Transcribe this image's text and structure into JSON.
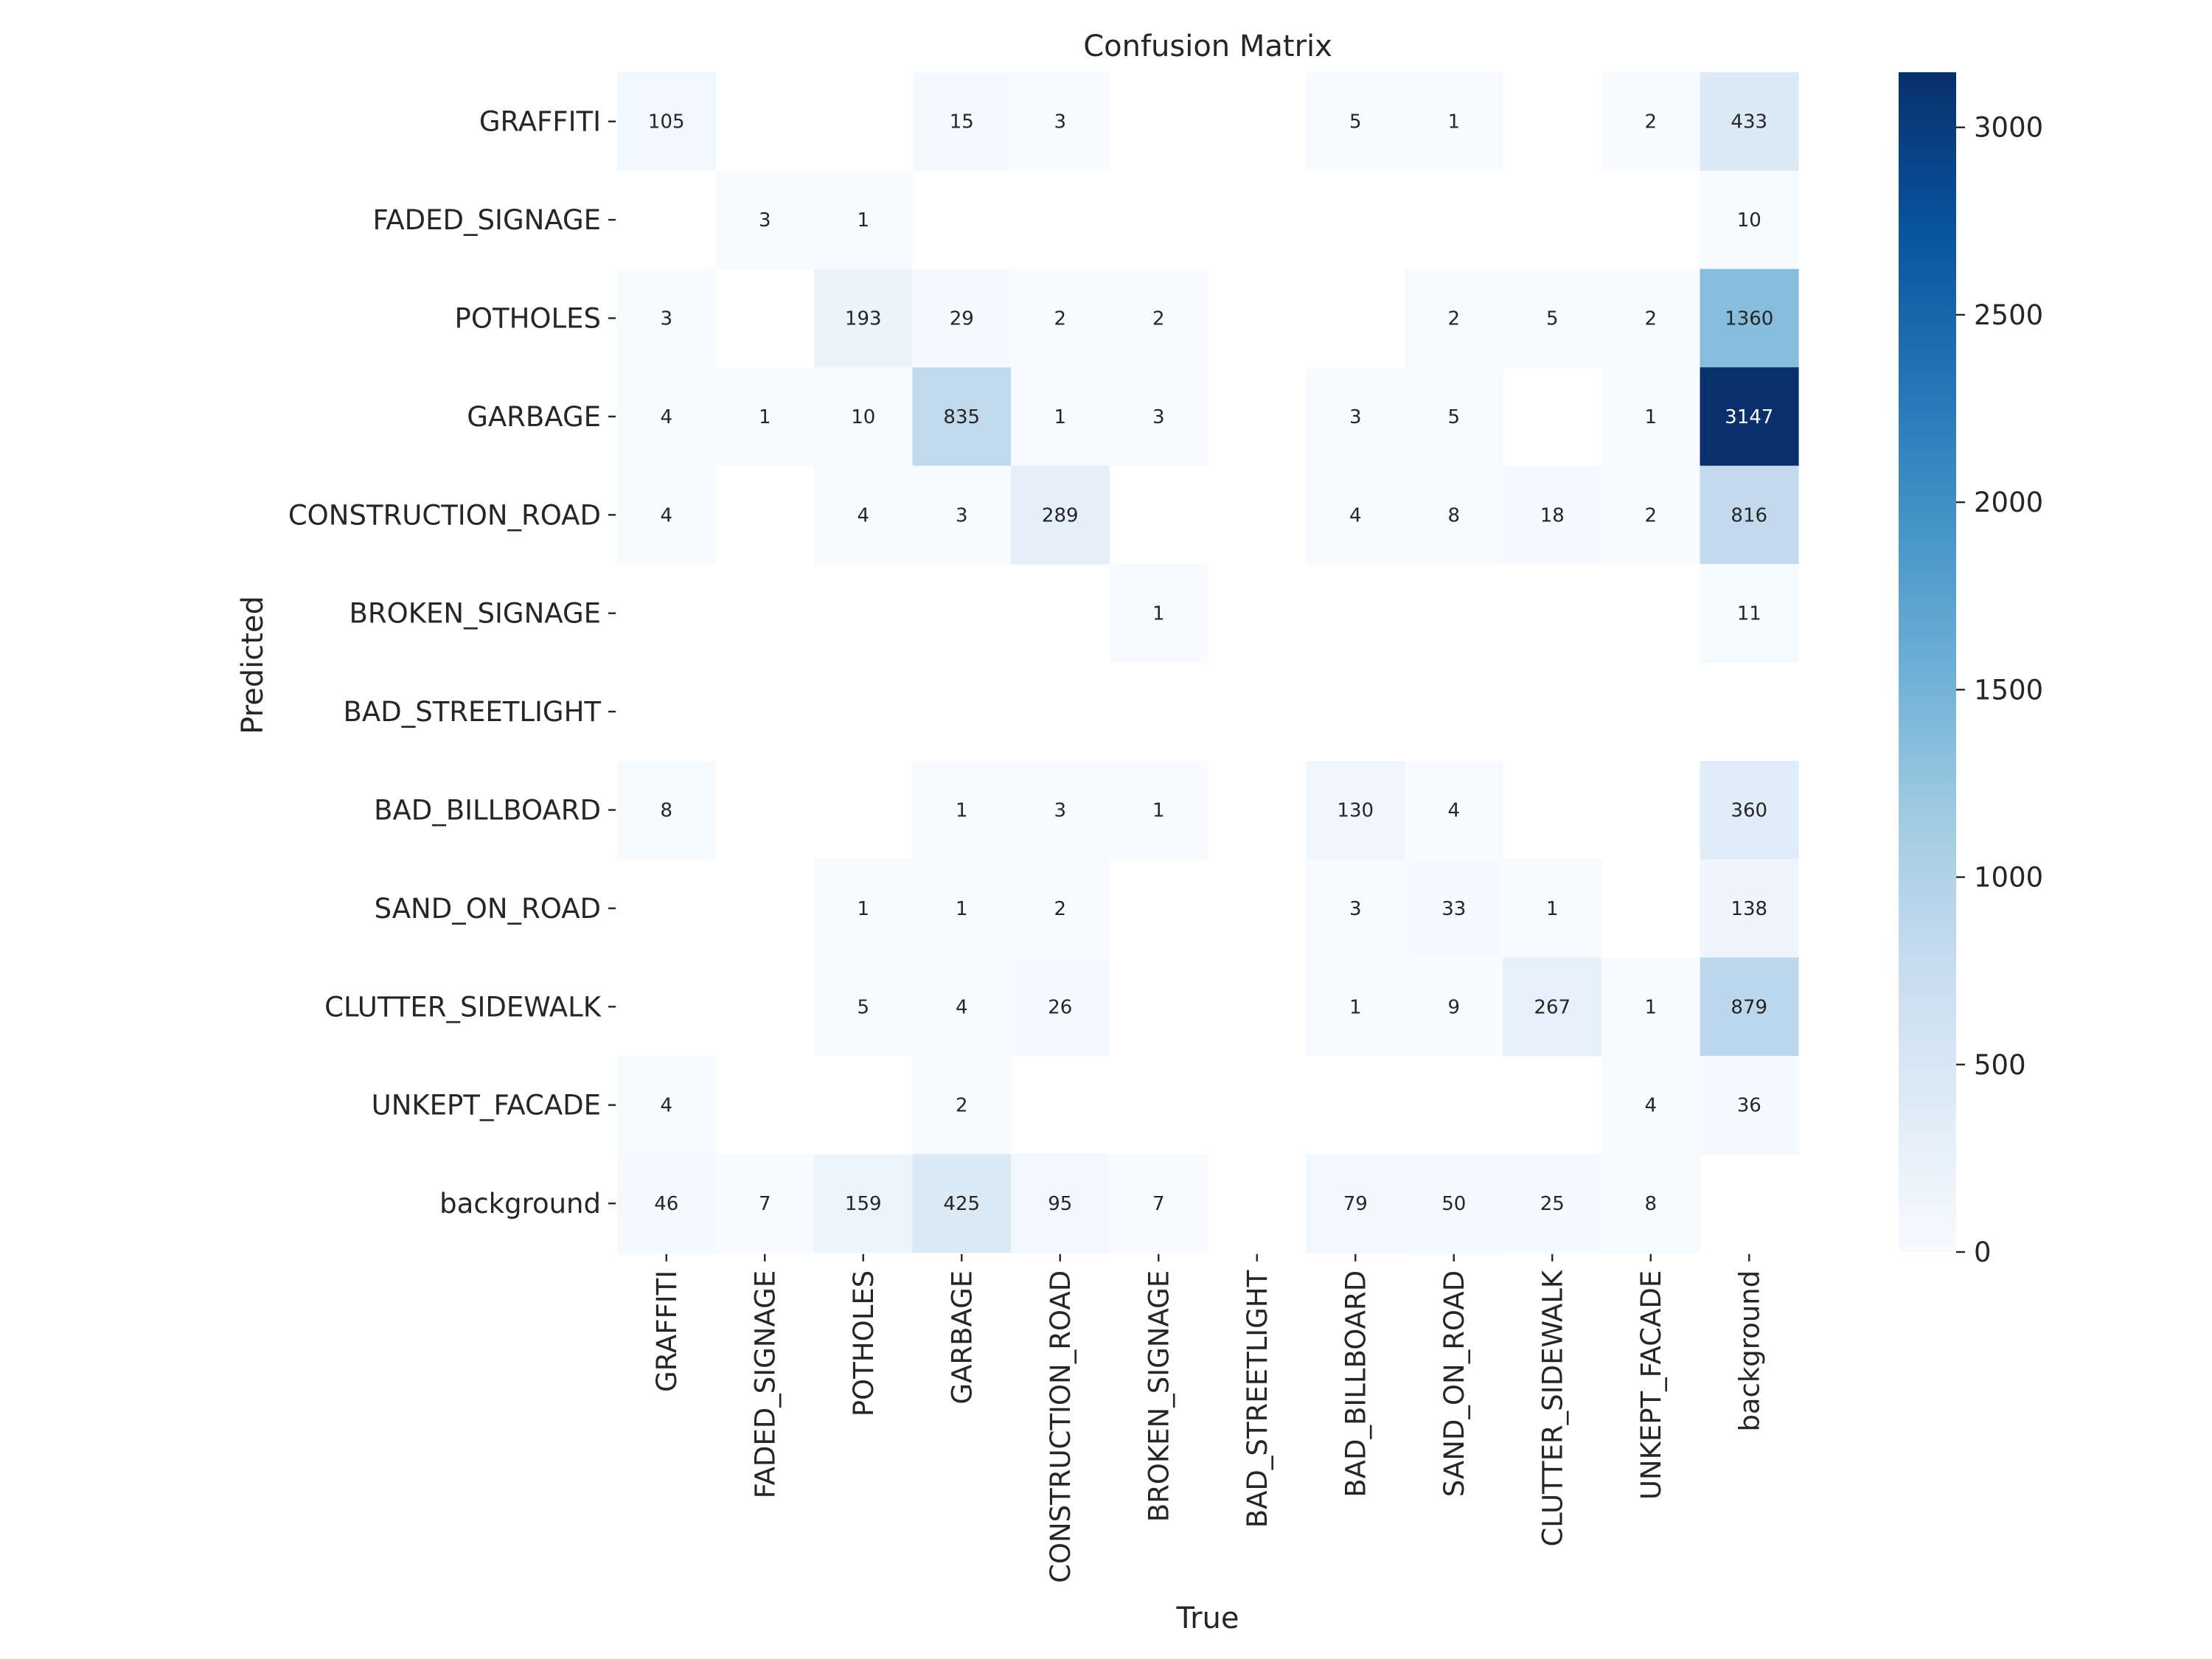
{
  "chart_data": {
    "type": "heatmap",
    "title": "Confusion Matrix",
    "xlabel": "True",
    "ylabel": "Predicted",
    "x_labels": [
      "GRAFFITI",
      "FADED_SIGNAGE",
      "POTHOLES",
      "GARBAGE",
      "CONSTRUCTION_ROAD",
      "BROKEN_SIGNAGE",
      "BAD_STREETLIGHT",
      "BAD_BILLBOARD",
      "SAND_ON_ROAD",
      "CLUTTER_SIDEWALK",
      "UNKEPT_FACADE",
      "background"
    ],
    "y_labels": [
      "GRAFFITI",
      "FADED_SIGNAGE",
      "POTHOLES",
      "GARBAGE",
      "CONSTRUCTION_ROAD",
      "BROKEN_SIGNAGE",
      "BAD_STREETLIGHT",
      "BAD_BILLBOARD",
      "SAND_ON_ROAD",
      "CLUTTER_SIDEWALK",
      "UNKEPT_FACADE",
      "background"
    ],
    "matrix": [
      [
        105,
        null,
        null,
        15,
        3,
        null,
        null,
        5,
        1,
        null,
        2,
        433
      ],
      [
        null,
        3,
        1,
        null,
        null,
        null,
        null,
        null,
        null,
        null,
        null,
        10
      ],
      [
        3,
        null,
        193,
        29,
        2,
        2,
        null,
        null,
        2,
        5,
        2,
        1360
      ],
      [
        4,
        1,
        10,
        835,
        1,
        3,
        null,
        3,
        5,
        null,
        1,
        3147
      ],
      [
        4,
        null,
        4,
        3,
        289,
        null,
        null,
        4,
        8,
        18,
        2,
        816
      ],
      [
        null,
        null,
        null,
        null,
        null,
        1,
        null,
        null,
        null,
        null,
        null,
        11
      ],
      [
        null,
        null,
        null,
        null,
        null,
        null,
        null,
        null,
        null,
        null,
        null,
        null
      ],
      [
        8,
        null,
        null,
        1,
        3,
        1,
        null,
        130,
        4,
        null,
        null,
        360
      ],
      [
        null,
        null,
        1,
        1,
        2,
        null,
        null,
        3,
        33,
        1,
        null,
        138
      ],
      [
        null,
        null,
        5,
        4,
        26,
        null,
        null,
        1,
        9,
        267,
        1,
        879
      ],
      [
        4,
        null,
        null,
        2,
        null,
        null,
        null,
        null,
        null,
        null,
        4,
        36
      ],
      [
        46,
        7,
        159,
        425,
        95,
        7,
        null,
        79,
        50,
        25,
        8,
        null
      ]
    ],
    "value_range": [
      0,
      3147
    ],
    "colorbar": {
      "ticks": [
        0,
        500,
        1000,
        1500,
        2000,
        2500,
        3000
      ]
    },
    "colormap": "Blues",
    "colormap_stops": [
      "#f7fbff",
      "#deebf7",
      "#c6dbef",
      "#9ecae1",
      "#6baed6",
      "#4292c6",
      "#2171b5",
      "#08519c",
      "#08306b"
    ]
  }
}
